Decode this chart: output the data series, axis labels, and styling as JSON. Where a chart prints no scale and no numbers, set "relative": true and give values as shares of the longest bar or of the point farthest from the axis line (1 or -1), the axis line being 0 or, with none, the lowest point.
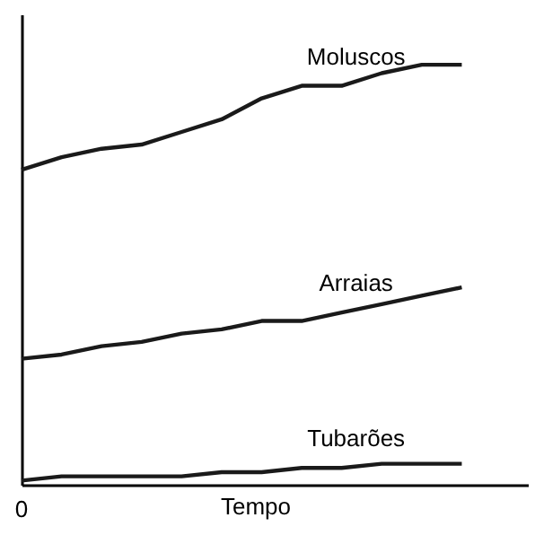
{
  "chart_data": {
    "type": "line",
    "relative": true,
    "xlabel": "Tempo",
    "annotations": [
      "0"
    ],
    "grid": false,
    "marker": "none",
    "line_style": "solid",
    "categories": [
      null,
      null,
      null,
      null,
      null,
      null,
      null,
      null,
      null,
      null,
      null,
      null
    ],
    "series": [
      {
        "name": "Moluscos",
        "color": "#1a1a1a",
        "values": [
          0.75,
          0.78,
          0.8,
          0.81,
          0.84,
          0.87,
          0.92,
          0.95,
          0.95,
          0.98,
          1.0,
          1.0
        ]
      },
      {
        "name": "Arraias",
        "color": "#1a1a1a",
        "values": [
          0.3,
          0.31,
          0.33,
          0.34,
          0.36,
          0.37,
          0.39,
          0.39,
          0.41,
          0.43,
          0.45,
          0.47
        ]
      },
      {
        "name": "Tubarões",
        "color": "#1a1a1a",
        "values": [
          0.01,
          0.02,
          0.02,
          0.02,
          0.02,
          0.03,
          0.03,
          0.04,
          0.04,
          0.05,
          0.05,
          0.05
        ]
      }
    ]
  }
}
